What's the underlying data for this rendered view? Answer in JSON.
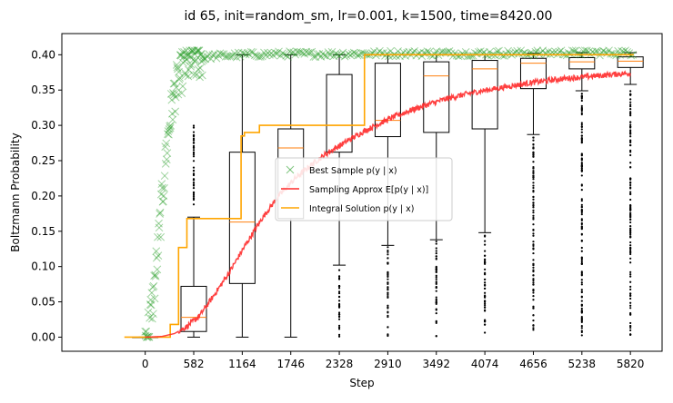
{
  "chart_data": {
    "type": "box+line+scatter",
    "title": "id 65, init=random_sm, lr=0.001, k=1500, time=8420.00",
    "xlabel": "Step",
    "ylabel": "Boltzmann Probability",
    "xlim": [
      -1000,
      6200
    ],
    "ylim": [
      -0.02,
      0.43
    ],
    "x_ticks": [
      0,
      582,
      1164,
      1746,
      2328,
      2910,
      3492,
      4074,
      4656,
      5238,
      5820
    ],
    "y_ticks": [
      0.0,
      0.05,
      0.1,
      0.15,
      0.2,
      0.25,
      0.3,
      0.35,
      0.4
    ],
    "y_tick_labels": [
      "0.00",
      "0.05",
      "0.10",
      "0.15",
      "0.20",
      "0.25",
      "0.30",
      "0.35",
      "0.40"
    ],
    "legend_position": "center-right",
    "legend": [
      {
        "label": "Best Sample p(y | x)",
        "marker": "x",
        "color": "#2ca02c"
      },
      {
        "label": "Sampling Approx E[p(y | x)]",
        "marker": "line",
        "color": "#ff2a2a"
      },
      {
        "label": "Integral Solution p(y | x)",
        "marker": "line",
        "color": "#ffa500"
      }
    ],
    "boxplots": [
      {
        "x": 0,
        "whislo": 0.0,
        "q1": 0.0,
        "med": 0.0,
        "q3": 0.0,
        "whishi": 0.0
      },
      {
        "x": 582,
        "whislo": 0.0,
        "q1": 0.008,
        "med": 0.028,
        "q3": 0.072,
        "whishi": 0.17
      },
      {
        "x": 1164,
        "whislo": 0.0,
        "q1": 0.076,
        "med": 0.163,
        "q3": 0.262,
        "whishi": 0.4
      },
      {
        "x": 1746,
        "whislo": 0.0,
        "q1": 0.168,
        "med": 0.268,
        "q3": 0.295,
        "whishi": 0.4
      },
      {
        "x": 2328,
        "whislo": 0.102,
        "q1": 0.262,
        "med": 0.3,
        "q3": 0.372,
        "whishi": 0.4
      },
      {
        "x": 2910,
        "whislo": 0.13,
        "q1": 0.284,
        "med": 0.307,
        "q3": 0.388,
        "whishi": 0.4
      },
      {
        "x": 3492,
        "whislo": 0.138,
        "q1": 0.29,
        "med": 0.37,
        "q3": 0.39,
        "whishi": 0.4
      },
      {
        "x": 4074,
        "whislo": 0.148,
        "q1": 0.295,
        "med": 0.38,
        "q3": 0.392,
        "whishi": 0.4
      },
      {
        "x": 4656,
        "whislo": 0.287,
        "q1": 0.352,
        "med": 0.388,
        "q3": 0.395,
        "whishi": 0.402
      },
      {
        "x": 5238,
        "whislo": 0.349,
        "q1": 0.38,
        "med": 0.39,
        "q3": 0.396,
        "whishi": 0.403
      },
      {
        "x": 5820,
        "whislo": 0.358,
        "q1": 0.382,
        "med": 0.391,
        "q3": 0.397,
        "whishi": 0.403
      }
    ],
    "outlier_ranges": [
      {
        "x": 582,
        "min": 0.17,
        "max": 0.3
      },
      {
        "x": 2328,
        "min": 0.0,
        "max": 0.1
      },
      {
        "x": 2910,
        "min": 0.0,
        "max": 0.128
      },
      {
        "x": 3492,
        "min": 0.0,
        "max": 0.136
      },
      {
        "x": 4074,
        "min": 0.0,
        "max": 0.146
      },
      {
        "x": 4656,
        "min": 0.0,
        "max": 0.285
      },
      {
        "x": 5238,
        "min": 0.0,
        "max": 0.347
      },
      {
        "x": 5820,
        "min": 0.0,
        "max": 0.356
      }
    ],
    "series": [
      {
        "name": "Sampling Approx E[p(y | x)]",
        "type": "line",
        "color": "#ff2a2a",
        "x": [
          0,
          200,
          350,
          500,
          650,
          800,
          1000,
          1200,
          1400,
          1600,
          1800,
          2000,
          2200,
          2400,
          2600,
          2800,
          3000,
          3200,
          3400,
          3600,
          3800,
          4000,
          4200,
          4400,
          4600,
          4800,
          5000,
          5200,
          5400,
          5600,
          5820
        ],
        "y": [
          0.0,
          0.001,
          0.005,
          0.015,
          0.03,
          0.055,
          0.09,
          0.13,
          0.168,
          0.2,
          0.225,
          0.245,
          0.262,
          0.276,
          0.29,
          0.302,
          0.313,
          0.322,
          0.33,
          0.337,
          0.343,
          0.348,
          0.352,
          0.356,
          0.36,
          0.363,
          0.366,
          0.368,
          0.37,
          0.372,
          0.374
        ]
      },
      {
        "name": "Integral Solution p(y | x)",
        "type": "step",
        "color": "#ffa500",
        "x": [
          -250,
          300,
          300,
          400,
          400,
          500,
          500,
          1150,
          1150,
          1190,
          1190,
          1370,
          1370,
          2630,
          2630,
          5860
        ],
        "y": [
          0.0,
          0.0,
          0.018,
          0.018,
          0.127,
          0.127,
          0.168,
          0.168,
          0.285,
          0.285,
          0.29,
          0.29,
          0.3,
          0.3,
          0.4,
          0.4
        ]
      },
      {
        "name": "Best Sample p(y | x)",
        "type": "scatter",
        "marker": "x",
        "color": "#2ca02c",
        "x": [
          0,
          50,
          100,
          150,
          200,
          250,
          300,
          350,
          400,
          450,
          500,
          550,
          600,
          700,
          800,
          1000,
          1200,
          1500,
          2000,
          3000,
          4000,
          5000,
          5820
        ],
        "y": [
          0.0,
          0.02,
          0.06,
          0.12,
          0.19,
          0.26,
          0.31,
          0.345,
          0.365,
          0.378,
          0.386,
          0.39,
          0.393,
          0.396,
          0.398,
          0.399,
          0.4,
          0.401,
          0.401,
          0.402,
          0.402,
          0.403,
          0.403
        ]
      }
    ]
  }
}
